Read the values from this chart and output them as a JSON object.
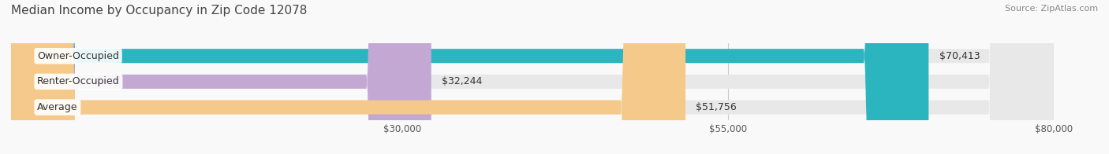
{
  "title": "Median Income by Occupancy in Zip Code 12078",
  "source": "Source: ZipAtlas.com",
  "categories": [
    "Owner-Occupied",
    "Renter-Occupied",
    "Average"
  ],
  "values": [
    70413,
    32244,
    51756
  ],
  "bar_colors": [
    "#2ab5bf",
    "#c4a8d4",
    "#f5c98a"
  ],
  "bar_bg_color": "#e8e8e8",
  "value_labels": [
    "$70,413",
    "$32,244",
    "$51,756"
  ],
  "xlim": [
    0,
    80000
  ],
  "xticks": [
    30000,
    55000,
    80000
  ],
  "xtick_labels": [
    "$30,000",
    "$55,000",
    "$80,000"
  ],
  "title_fontsize": 11,
  "label_fontsize": 9,
  "tick_fontsize": 8.5,
  "source_fontsize": 8,
  "bar_height": 0.55,
  "background_color": "#f9f9f9",
  "title_color": "#444444",
  "label_color": "#333333",
  "value_color": "#333333",
  "source_color": "#888888",
  "grid_color": "#cccccc"
}
